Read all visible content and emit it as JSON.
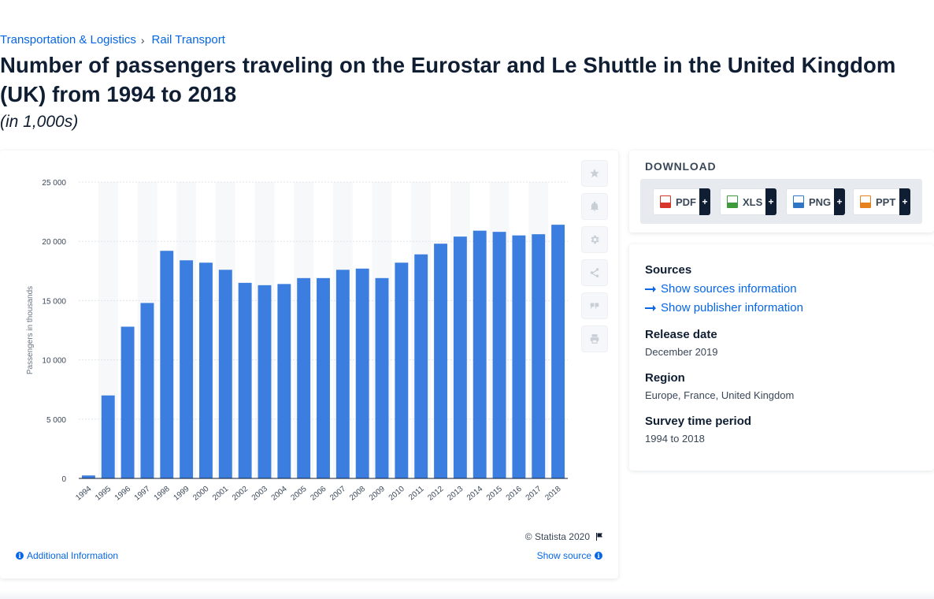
{
  "breadcrumb": {
    "category": "Transportation & Logistics",
    "subcategory": "Rail Transport"
  },
  "title": "Number of passengers traveling on the Eurostar and Le Shuttle in the United Kingdom (UK) from 1994 to 2018",
  "subtitle": "(in 1,000s)",
  "chart_data": {
    "type": "bar",
    "ylabel": "Passengers in thousands",
    "xlabel": "",
    "ylim": [
      0,
      25000
    ],
    "yticks": [
      0,
      5000,
      10000,
      15000,
      20000,
      25000
    ],
    "ytick_labels": [
      "0",
      "5 000",
      "10 000",
      "15 000",
      "20 000",
      "25 000"
    ],
    "grid": true,
    "bar_color": "#3c7ee0",
    "categories": [
      "1994",
      "1995",
      "1996",
      "1997",
      "1998",
      "1999",
      "2000",
      "2001",
      "2002",
      "2003",
      "2004",
      "2005",
      "2006",
      "2007",
      "2008",
      "2009",
      "2010",
      "2011",
      "2012",
      "2013",
      "2014",
      "2015",
      "2016",
      "2017",
      "2018"
    ],
    "values": [
      250,
      7000,
      12800,
      14800,
      19200,
      18400,
      18200,
      17600,
      16500,
      16300,
      16400,
      16900,
      16900,
      17600,
      17700,
      16900,
      18200,
      18900,
      19800,
      20400,
      20900,
      20800,
      20500,
      20600,
      21400
    ]
  },
  "chart_footer": {
    "copyright": "© Statista 2020",
    "additional_info": "Additional Information",
    "show_source": "Show source"
  },
  "download": {
    "title": "DOWNLOAD",
    "buttons": [
      {
        "label": "PDF",
        "color": "#d9362b"
      },
      {
        "label": "XLS",
        "color": "#3d9b3a"
      },
      {
        "label": "PNG",
        "color": "#2f76c4"
      },
      {
        "label": "PPT",
        "color": "#e6821e"
      }
    ],
    "plus": "+"
  },
  "details": {
    "sources_heading": "Sources",
    "show_sources": "Show sources information",
    "show_publisher": "Show publisher information",
    "release_heading": "Release date",
    "release_value": "December 2019",
    "region_heading": "Region",
    "region_value": "Europe, France, United Kingdom",
    "period_heading": "Survey time period",
    "period_value": "1994 to 2018"
  },
  "tools": [
    "star-icon",
    "bell-icon",
    "gear-icon",
    "share-icon",
    "quote-icon",
    "print-icon"
  ]
}
